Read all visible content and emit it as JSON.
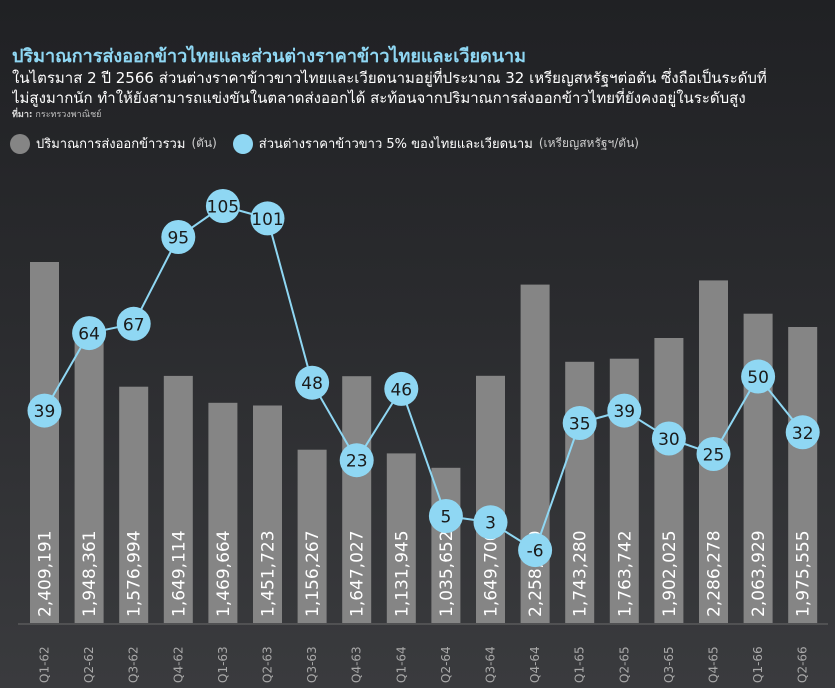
{
  "header": {
    "title": "ปริมาณการส่งออกข้าวไทยและส่วนต่างราคาข้าวไทยและเวียดนาม",
    "subtitle_line1": "ในไตรมาส 2 ปี 2566 ส่วนต่างราคาข้าวขาวไทยและเวียดนามอยู่ที่ประมาณ 32 เหรียญสหรัฐฯต่อตัน ซึ่งถือเป็นระดับที่",
    "subtitle_line2": "ไม่สูงมากนัก ทำให้ยังสามารถแข่งขันในตลาดส่งออกได้ สะท้อนจากปริมาณการส่งออกข้าวไทยที่ยังคงอยู่ในระดับสูง",
    "source_key": "ที่มา:",
    "source_value": "กระทรวงพาณิชย์"
  },
  "colors": {
    "bar": "#858585",
    "point": "#8fd7f3",
    "line": "#8fd7f3",
    "title": "#8fd7f3",
    "point_text": "#1a1a1a",
    "bar_text": "#ffffff"
  },
  "chart_data": {
    "type": "bar",
    "categories": [
      "Q1-62",
      "Q2-62",
      "Q3-62",
      "Q4-62",
      "Q1-63",
      "Q2-63",
      "Q3-63",
      "Q4-63",
      "Q1-64",
      "Q2-64",
      "Q3-64",
      "Q4-64",
      "Q1-65",
      "Q2-65",
      "Q3-65",
      "Q4-65",
      "Q1-66",
      "Q2-66"
    ],
    "series": [
      {
        "name": "ปริมาณการส่งออกข้าวรวม",
        "unit": "(ตัน)",
        "type": "bar",
        "values": [
          2409191,
          1948361,
          1576994,
          1649114,
          1469664,
          1451723,
          1156267,
          1647027,
          1131945,
          1035652,
          1649700,
          2258459,
          1743280,
          1763742,
          1902025,
          2286278,
          2063929,
          1975555
        ],
        "labels": [
          "2,409,191",
          "1,948,361",
          "1,576,994",
          "1,649,114",
          "1,469,664",
          "1,451,723",
          "1,156,267",
          "1,647,027",
          "1,131,945",
          "1,035,652",
          "1,649,700",
          "2,258,459",
          "1,743,280",
          "1,763,742",
          "1,902,025",
          "2,286,278",
          "2,063,929",
          "1,975,555"
        ]
      },
      {
        "name": "ส่วนต่างราคาข้าวขาว 5% ของไทยและเวียดนาม",
        "unit": "(เหรียญสหรัฐฯ/ตัน)",
        "type": "line",
        "values": [
          39,
          64,
          67,
          95,
          105,
          101,
          48,
          23,
          46,
          5,
          3,
          -6,
          35,
          39,
          30,
          25,
          50,
          32
        ]
      }
    ]
  }
}
